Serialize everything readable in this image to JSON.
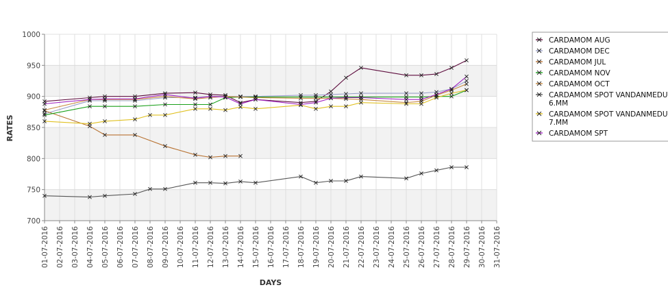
{
  "chart_data": {
    "type": "line",
    "xlabel": "DAYS",
    "ylabel": "RATES",
    "ylim": [
      700,
      1000
    ],
    "yticks": [
      700,
      750,
      800,
      850,
      900,
      950,
      1000
    ],
    "x_tick_labels": [
      "01-07-2016",
      "02-07-2016",
      "03-07-2016",
      "04-07-2016",
      "05-07-2016",
      "06-07-2016",
      "07-07-2016",
      "08-07-2016",
      "09-07-2016",
      "10-07-2016",
      "11-07-2016",
      "12-07-2016",
      "13-07-2016",
      "14-07-2016",
      "15-07-2016",
      "16-07-2016",
      "17-07-2016",
      "18-07-2016",
      "19-07-2016",
      "20-07-2016",
      "21-07-2016",
      "22-07-2016",
      "23-07-2016",
      "24-07-2016",
      "25-07-2016",
      "26-07-2016",
      "27-07-2016",
      "28-07-2016",
      "29-07-2016",
      "30-07-2016",
      "31-07-2016"
    ],
    "grid": true,
    "legend_position": "right",
    "series": [
      {
        "name": "CARDAMOM AUG",
        "color": "#5c0a3c",
        "x": [
          "01-07-2016",
          "04-07-2016",
          "05-07-2016",
          "07-07-2016",
          "09-07-2016",
          "11-07-2016",
          "12-07-2016",
          "13-07-2016",
          "14-07-2016",
          "15-07-2016",
          "18-07-2016",
          "19-07-2016",
          "20-07-2016",
          "21-07-2016",
          "22-07-2016",
          "25-07-2016",
          "26-07-2016",
          "27-07-2016",
          "28-07-2016",
          "29-07-2016"
        ],
        "y": [
          892,
          898,
          900,
          900,
          905,
          906,
          903,
          902,
          890,
          895,
          890,
          892,
          908,
          930,
          946,
          934,
          934,
          936,
          946,
          958
        ]
      },
      {
        "name": "CARDAMOM DEC",
        "color": "#9aa0c8",
        "x": [
          "01-07-2016",
          "04-07-2016",
          "05-07-2016",
          "07-07-2016",
          "09-07-2016",
          "11-07-2016",
          "12-07-2016",
          "13-07-2016",
          "14-07-2016",
          "15-07-2016",
          "18-07-2016",
          "19-07-2016",
          "20-07-2016",
          "21-07-2016",
          "22-07-2016",
          "25-07-2016",
          "26-07-2016",
          "27-07-2016",
          "28-07-2016",
          "29-07-2016"
        ],
        "y": [
          872,
          893,
          893,
          893,
          898,
          898,
          900,
          900,
          900,
          900,
          902,
          902,
          903,
          904,
          905,
          905,
          905,
          907,
          912,
          925
        ]
      },
      {
        "name": "CARDAMOM JUL",
        "color": "#b87333",
        "x": [
          "01-07-2016",
          "04-07-2016",
          "05-07-2016",
          "07-07-2016",
          "09-07-2016",
          "11-07-2016",
          "12-07-2016",
          "13-07-2016",
          "14-07-2016"
        ],
        "y": [
          877,
          852,
          838,
          838,
          820,
          806,
          802,
          804,
          804
        ]
      },
      {
        "name": "CARDAMOM NOV",
        "color": "#1aa01a",
        "x": [
          "01-07-2016",
          "04-07-2016",
          "05-07-2016",
          "07-07-2016",
          "09-07-2016",
          "11-07-2016",
          "12-07-2016",
          "13-07-2016",
          "14-07-2016",
          "15-07-2016",
          "18-07-2016",
          "19-07-2016",
          "20-07-2016",
          "21-07-2016",
          "22-07-2016",
          "25-07-2016",
          "26-07-2016",
          "27-07-2016",
          "28-07-2016",
          "29-07-2016"
        ],
        "y": [
          870,
          884,
          884,
          884,
          887,
          887,
          887,
          898,
          899,
          899,
          899,
          899,
          899,
          899,
          899,
          899,
          899,
          900,
          900,
          910
        ]
      },
      {
        "name": "CARDAMOM OCT",
        "color": "#c88a40",
        "x": [
          "01-07-2016",
          "04-07-2016",
          "05-07-2016",
          "07-07-2016",
          "09-07-2016",
          "11-07-2016",
          "12-07-2016",
          "13-07-2016",
          "14-07-2016",
          "15-07-2016",
          "18-07-2016",
          "19-07-2016",
          "20-07-2016",
          "21-07-2016",
          "22-07-2016",
          "25-07-2016",
          "26-07-2016",
          "27-07-2016",
          "28-07-2016",
          "29-07-2016"
        ],
        "y": [
          878,
          895,
          895,
          895,
          900,
          896,
          898,
          900,
          899,
          898,
          897,
          897,
          897,
          896,
          895,
          890,
          892,
          902,
          910,
          920
        ]
      },
      {
        "name": "CARDAMOM SPOT VANDANMEDU 6.MM",
        "color": "#555555",
        "x": [
          "01-07-2016",
          "04-07-2016",
          "05-07-2016",
          "07-07-2016",
          "08-07-2016",
          "09-07-2016",
          "11-07-2016",
          "12-07-2016",
          "13-07-2016",
          "14-07-2016",
          "15-07-2016",
          "18-07-2016",
          "19-07-2016",
          "20-07-2016",
          "21-07-2016",
          "22-07-2016",
          "25-07-2016",
          "26-07-2016",
          "27-07-2016",
          "28-07-2016",
          "29-07-2016"
        ],
        "y": [
          740,
          738,
          740,
          743,
          751,
          751,
          761,
          761,
          760,
          763,
          761,
          771,
          761,
          764,
          764,
          771,
          768,
          776,
          781,
          786,
          786
        ]
      },
      {
        "name": "CARDAMOM SPOT VANDANMEDU 7.MM",
        "color": "#e0c020",
        "x": [
          "01-07-2016",
          "04-07-2016",
          "05-07-2016",
          "07-07-2016",
          "08-07-2016",
          "09-07-2016",
          "11-07-2016",
          "12-07-2016",
          "13-07-2016",
          "14-07-2016",
          "15-07-2016",
          "18-07-2016",
          "19-07-2016",
          "20-07-2016",
          "21-07-2016",
          "22-07-2016",
          "25-07-2016",
          "26-07-2016",
          "27-07-2016",
          "28-07-2016",
          "29-07-2016"
        ],
        "y": [
          860,
          856,
          860,
          863,
          870,
          870,
          880,
          880,
          878,
          883,
          880,
          886,
          880,
          884,
          884,
          890,
          888,
          888,
          898,
          905,
          910
        ]
      },
      {
        "name": "CARDAMOM SPT",
        "color": "#a020c0",
        "x": [
          "01-07-2016",
          "04-07-2016",
          "05-07-2016",
          "07-07-2016",
          "09-07-2016",
          "11-07-2016",
          "12-07-2016",
          "13-07-2016",
          "14-07-2016",
          "15-07-2016",
          "18-07-2016",
          "19-07-2016",
          "20-07-2016",
          "21-07-2016",
          "22-07-2016",
          "25-07-2016",
          "26-07-2016",
          "27-07-2016",
          "28-07-2016",
          "29-07-2016"
        ],
        "y": [
          888,
          895,
          896,
          896,
          903,
          897,
          900,
          899,
          888,
          895,
          887,
          890,
          897,
          898,
          898,
          895,
          895,
          903,
          912,
          932
        ]
      }
    ]
  },
  "legend": {
    "entries": [
      {
        "lines": [
          "CARDAMOM AUG"
        ]
      },
      {
        "lines": [
          "CARDAMOM DEC"
        ]
      },
      {
        "lines": [
          "CARDAMOM JUL"
        ]
      },
      {
        "lines": [
          "CARDAMOM NOV"
        ]
      },
      {
        "lines": [
          "CARDAMOM OCT"
        ]
      },
      {
        "lines": [
          "CARDAMOM SPOT VANDANMEDU",
          "6.MM"
        ]
      },
      {
        "lines": [
          "CARDAMOM SPOT VANDANMEDU",
          "7.MM"
        ]
      },
      {
        "lines": [
          "CARDAMOM SPT"
        ]
      }
    ]
  },
  "colors": {
    "band": "#f2f2f2",
    "grid": "#d8d8d8",
    "axis": "#888888"
  }
}
